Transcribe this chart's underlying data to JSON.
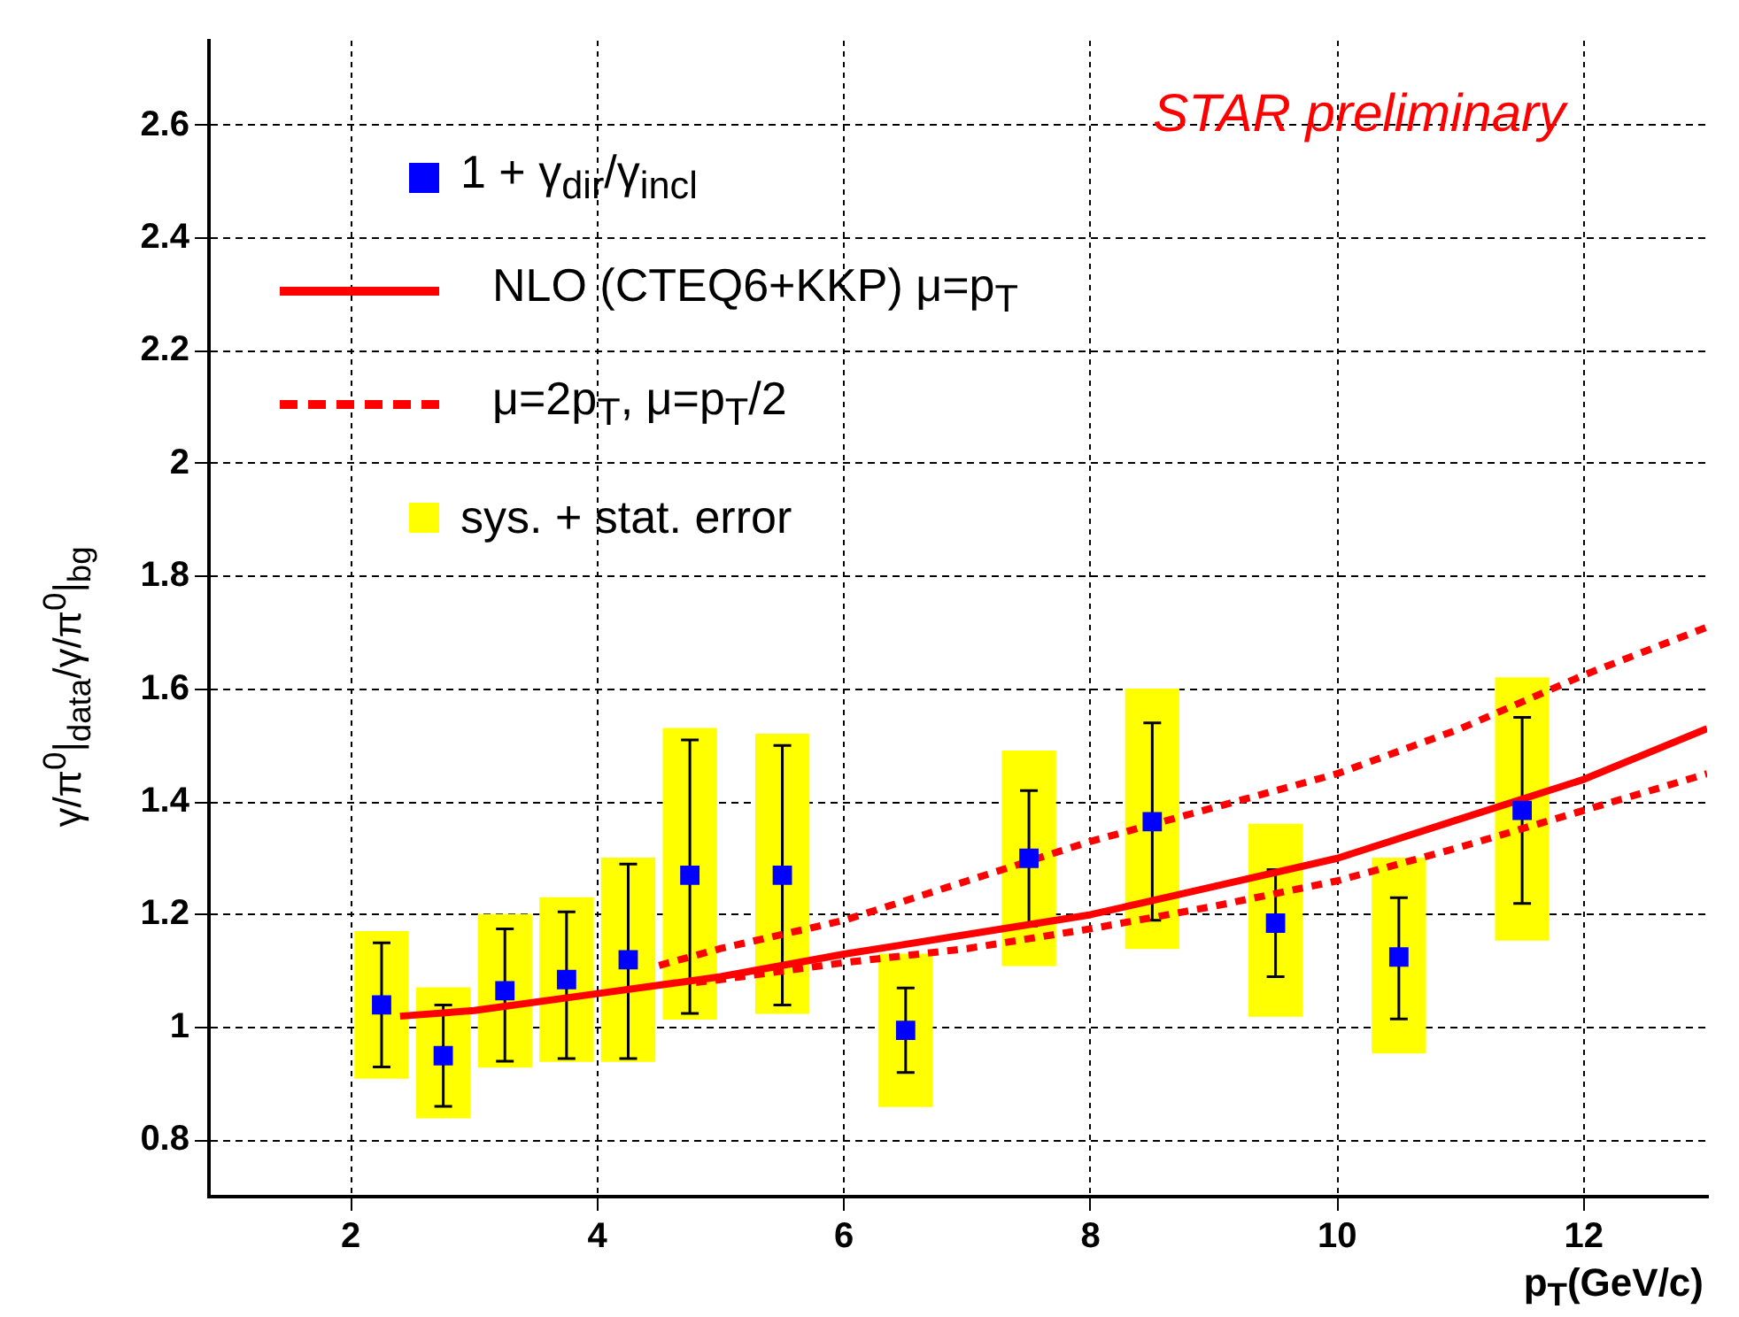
{
  "chart_data": {
    "type": "scatter",
    "ylabel": "γ/π$^{0}$|$_{data}$/γ/π$^{0}$|$_{bg}$",
    "xlabel": "p$_{T}$(GeV/c)",
    "annotations": [
      "STAR preliminary"
    ],
    "xlim": [
      0.85,
      13
    ],
    "xticks": [
      2,
      4,
      6,
      8,
      10,
      12
    ],
    "ylim": [
      0.7,
      2.75
    ],
    "yticks": [
      0.8,
      1,
      1.2,
      1.4,
      1.6,
      1.8,
      2,
      2.2,
      2.4,
      2.6
    ],
    "grid": true,
    "legend": "top left",
    "series": [
      {
        "name": "1 + γ$_{dir}$/γ$_{incl}$",
        "marker": "square",
        "color": "#0000ff",
        "x": [
          2.25,
          2.75,
          3.25,
          3.75,
          4.25,
          4.75,
          5.5,
          6.5,
          7.5,
          8.5,
          9.5,
          10.5,
          11.5
        ],
        "values": [
          1.04,
          0.95,
          1.065,
          1.085,
          1.12,
          1.27,
          1.27,
          0.995,
          1.3,
          1.365,
          1.185,
          1.125,
          1.385
        ],
        "errors": [
          [
            0.93,
            1.15
          ],
          [
            0.86,
            1.04
          ],
          [
            0.94,
            1.175
          ],
          [
            0.945,
            1.205
          ],
          [
            0.945,
            1.29
          ],
          [
            1.025,
            1.51
          ],
          [
            1.04,
            1.5
          ],
          [
            0.92,
            1.07
          ],
          [
            1.18,
            1.42
          ],
          [
            1.19,
            1.54
          ],
          [
            1.09,
            1.28
          ],
          [
            1.015,
            1.23
          ],
          [
            1.22,
            1.55
          ]
        ]
      },
      {
        "name": "NLO (CTEQ6+KKP) μ=p$_{T}$",
        "type": "line",
        "line_style": "solid",
        "marker": "none",
        "color": "#ff0000",
        "x": [
          2.4,
          3,
          4,
          5,
          6,
          7,
          8,
          9,
          10,
          11,
          12,
          13
        ],
        "values": [
          1.02,
          1.03,
          1.06,
          1.09,
          1.13,
          1.165,
          1.2,
          1.25,
          1.3,
          1.37,
          1.44,
          1.53
        ]
      },
      {
        "name": "μ=2p$_{T}$, μ=p$_{T}$/2",
        "type": "line",
        "line_style": "dashed",
        "marker": "none",
        "color": "#ff0000",
        "x": [
          4.5,
          5,
          6,
          7,
          8,
          9,
          10,
          11,
          12,
          13
        ],
        "values": [
          1.11,
          1.14,
          1.19,
          1.26,
          1.33,
          1.39,
          1.45,
          1.53,
          1.625,
          1.71
        ]
      },
      {
        "type": "line",
        "line_style": "dashed",
        "marker": "none",
        "color": "#ff0000",
        "x": [
          4.8,
          5,
          6,
          7,
          8,
          9,
          10,
          11,
          12,
          13
        ],
        "values": [
          1.08,
          1.085,
          1.115,
          1.14,
          1.175,
          1.215,
          1.26,
          1.32,
          1.385,
          1.45
        ]
      },
      {
        "name": "sys. + stat. error",
        "type": "bar",
        "color": "#ffff00",
        "x": [
          2.25,
          2.75,
          3.25,
          3.75,
          4.25,
          4.75,
          5.5,
          6.5,
          7.5,
          8.5,
          9.5,
          10.5,
          11.5
        ],
        "base": [
          0.91,
          0.84,
          0.93,
          0.94,
          0.94,
          1.015,
          1.025,
          0.86,
          1.11,
          1.14,
          1.02,
          0.955,
          1.155
        ],
        "values": [
          0.26,
          0.23,
          0.27,
          0.29,
          0.36,
          0.515,
          0.495,
          0.27,
          0.38,
          0.46,
          0.34,
          0.345,
          0.465
        ]
      }
    ]
  }
}
